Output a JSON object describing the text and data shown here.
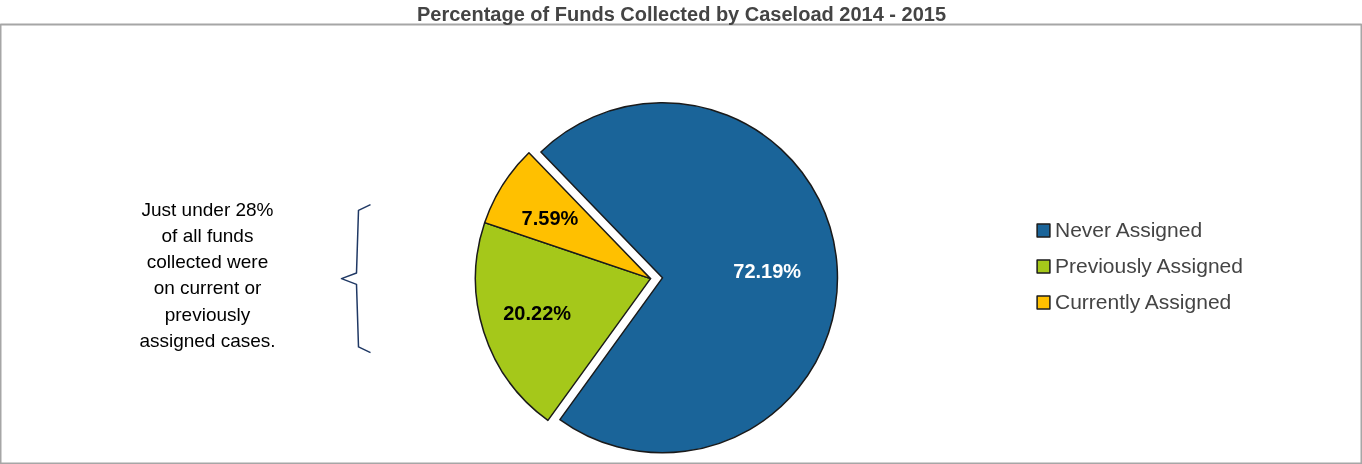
{
  "chart_data": {
    "type": "pie",
    "title": "Percentage of Funds Collected by Caseload 2014 - 2015",
    "categories": [
      "Never Assigned",
      "Previously Assigned",
      "Currently Assigned"
    ],
    "values": [
      72.19,
      20.22,
      7.59
    ],
    "colors": [
      "#1a6499",
      "#a5c81a",
      "#ffc000"
    ],
    "value_labels": [
      "72.19%",
      "20.22%",
      "7.59%"
    ],
    "legend": "right",
    "annotations": [
      "Just under 28%\nof all funds\ncollected were\non current or\npreviously\nassigned cases."
    ]
  }
}
